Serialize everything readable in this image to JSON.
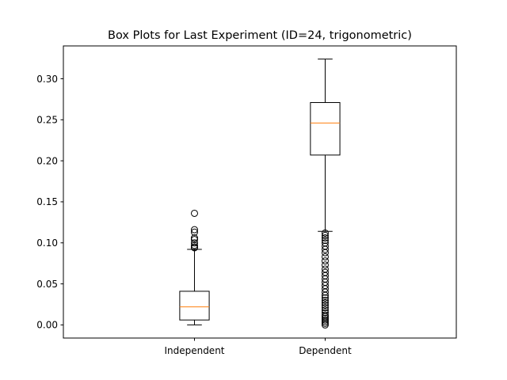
{
  "chart_data": {
    "type": "box",
    "title": "Box Plots for Last Experiment (ID=24, trigonometric)",
    "xlabel": "",
    "ylabel": "",
    "ylim": [
      -0.016,
      0.34
    ],
    "yticks": [
      "0.00",
      "0.05",
      "0.10",
      "0.15",
      "0.20",
      "0.25",
      "0.30"
    ],
    "grid": false,
    "legend": false,
    "series": [
      {
        "name": "Independent",
        "whisker_low": 0.0,
        "q1": 0.006,
        "median": 0.022,
        "q3": 0.041,
        "whisker_high": 0.092,
        "outliers": [
          0.094,
          0.095,
          0.097,
          0.1,
          0.104,
          0.106,
          0.113,
          0.116,
          0.136
        ]
      },
      {
        "name": "Dependent",
        "whisker_low": 0.114,
        "q1": 0.207,
        "median": 0.246,
        "q3": 0.271,
        "whisker_high": 0.324,
        "outliers": [
          0.0,
          0.002,
          0.004,
          0.006,
          0.008,
          0.01,
          0.012,
          0.015,
          0.018,
          0.021,
          0.024,
          0.027,
          0.03,
          0.033,
          0.036,
          0.04,
          0.044,
          0.048,
          0.052,
          0.056,
          0.06,
          0.064,
          0.068,
          0.073,
          0.078,
          0.083,
          0.088,
          0.092,
          0.096,
          0.1,
          0.103,
          0.106,
          0.109,
          0.112
        ]
      }
    ],
    "colors": {
      "box": "#000000",
      "median": "#ff7f0e",
      "axes": "#000000",
      "background": "#ffffff"
    }
  }
}
